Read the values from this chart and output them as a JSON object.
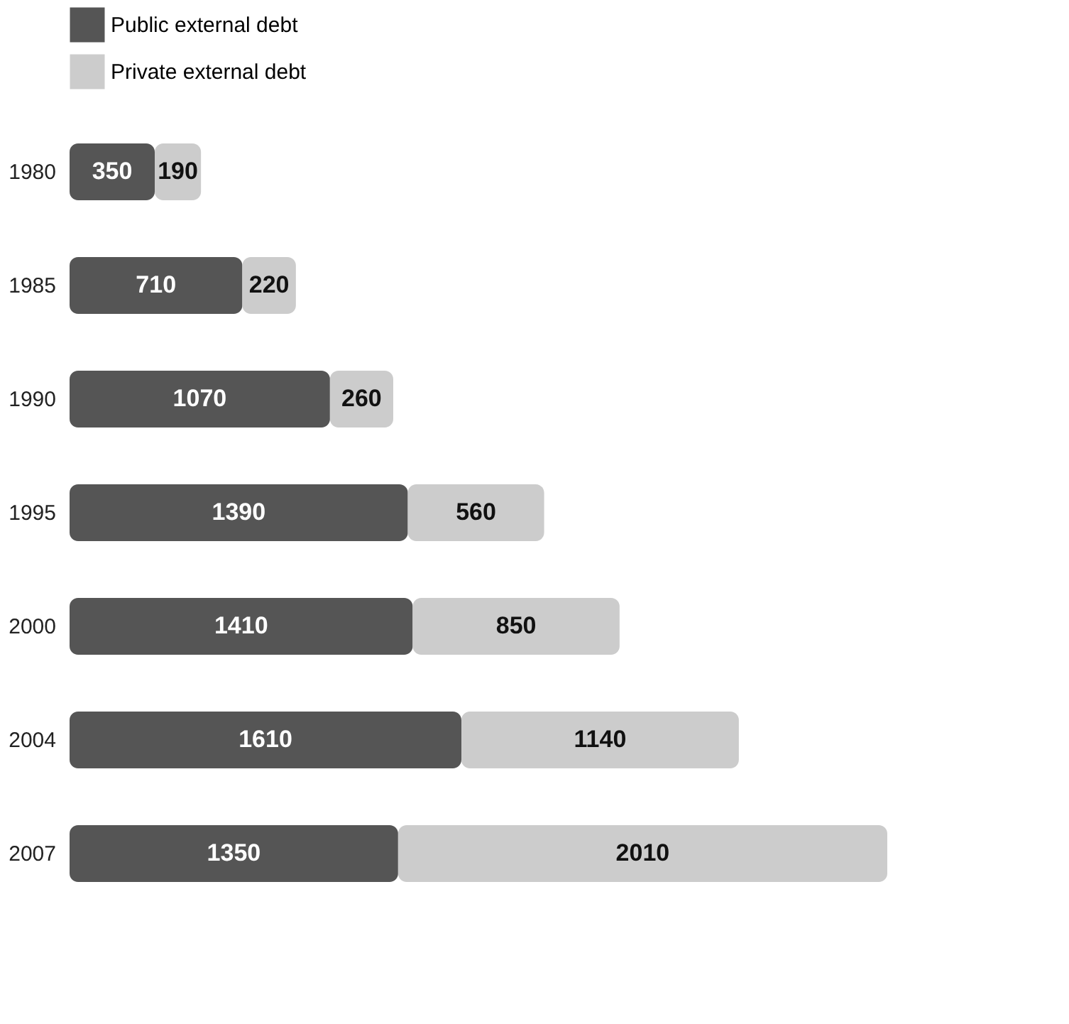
{
  "chart_data": {
    "type": "bar",
    "orientation": "horizontal",
    "stacked": true,
    "data_labels": true,
    "legend": "top left",
    "categories": [
      "1980",
      "1985",
      "1990",
      "1995",
      "2000",
      "2004",
      "2007"
    ],
    "series": [
      {
        "name": "Public external debt",
        "color": "#555555",
        "values": [
          350,
          710,
          1070,
          1390,
          1410,
          1610,
          1350
        ]
      },
      {
        "name": "Private external debt",
        "color": "#cccccc",
        "values": [
          190,
          220,
          260,
          560,
          850,
          1140,
          2010
        ]
      }
    ]
  }
}
